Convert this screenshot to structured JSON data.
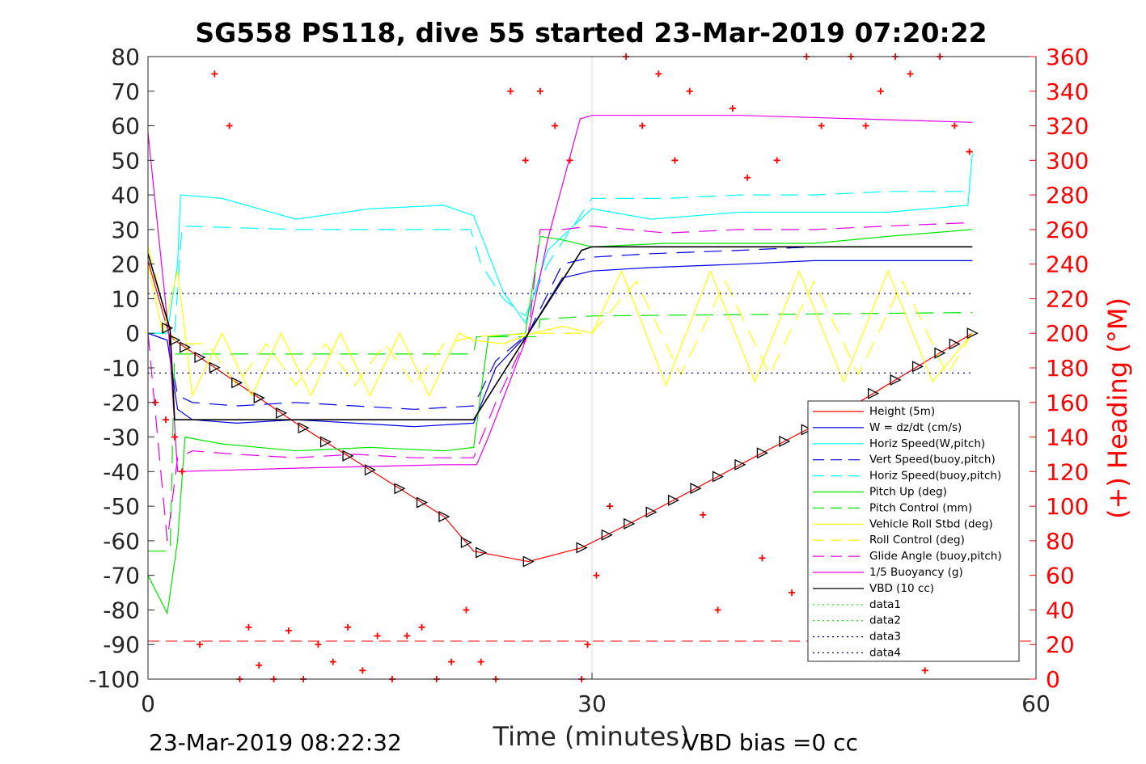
{
  "chart_data": {
    "type": "line",
    "title": "SG558 PS118, dive 55 started 23-Mar-2019 07:20:22",
    "xlabel": "Time (minutes)",
    "ylabel": "",
    "ylabel_right": "(+) Heading (°M)",
    "xlim": [
      0,
      60
    ],
    "ylim": [
      -100,
      80
    ],
    "ylim_right": [
      0,
      360
    ],
    "x_ticks": [
      "0",
      "30",
      "60"
    ],
    "y_ticks": [
      "80",
      "70",
      "60",
      "50",
      "40",
      "30",
      "20",
      "10",
      "0",
      "-10",
      "-20",
      "-30",
      "-40",
      "-50",
      "-60",
      "-70",
      "-80",
      "-90",
      "-100"
    ],
    "y_ticks_right": [
      "360",
      "340",
      "320",
      "300",
      "280",
      "260",
      "240",
      "220",
      "200",
      "180",
      "160",
      "140",
      "120",
      "100",
      "80",
      "60",
      "40",
      "20",
      "0"
    ],
    "grid": "vertical at x=30",
    "legend_position": "bottom-right",
    "footer_left": "23-Mar-2019 08:22:32",
    "footer_right": "VBD bias =0 cc",
    "colors": {
      "red": "#ff0000",
      "blue": "#0000e6",
      "cyan": "#00ffff",
      "green": "#00e600",
      "yellow": "#ffff00",
      "magenta": "#e600e6",
      "black": "#000000",
      "navy": "#000080"
    },
    "series": [
      {
        "name": "Height (5m)",
        "color": "#ff0000",
        "style": "solid",
        "x": [
          0,
          1.4,
          1.8,
          10,
          20,
          22,
          25.7,
          29.3,
          33,
          40,
          48,
          55.7
        ],
        "values": [
          21,
          0,
          -2,
          -26,
          -53,
          -63,
          -66,
          -62,
          -54,
          -38,
          -20,
          0
        ]
      },
      {
        "name": "W = dz/dt (cm/s)",
        "color": "#0000e6",
        "style": "solid",
        "x": [
          0,
          1.3,
          2,
          3,
          6,
          10,
          14,
          18,
          22,
          23.5,
          25.7,
          28,
          30,
          34,
          40,
          45,
          50,
          55.7
        ],
        "values": [
          0,
          -2,
          -22,
          -25,
          -26,
          -25,
          -26,
          -27,
          -26,
          -10,
          0,
          16,
          18,
          19,
          20,
          21,
          21,
          21
        ]
      },
      {
        "name": "Horiz Speed(W,pitch)",
        "color": "#00ffff",
        "style": "solid",
        "x": [
          0,
          1.3,
          2,
          2.2,
          5,
          10,
          15,
          20,
          22,
          24,
          25.5,
          27,
          30,
          34,
          40,
          45,
          50,
          55.4,
          55.7
        ],
        "values": [
          0,
          0,
          20,
          40,
          39,
          33,
          36,
          37,
          34,
          12,
          3,
          24,
          36,
          33,
          35,
          35,
          35,
          37,
          52
        ]
      },
      {
        "name": "Vert Speed(buoy,pitch)",
        "color": "#0000e6",
        "style": "dashed",
        "x": [
          0,
          1.3,
          2,
          3,
          6,
          10,
          14,
          18,
          22,
          23.5,
          25.7,
          28,
          30,
          34,
          40,
          45,
          50,
          55.7
        ],
        "values": [
          0,
          -2,
          -18,
          -20,
          -21,
          -20,
          -21,
          -22,
          -21,
          -8,
          0,
          20,
          22,
          23,
          24,
          25,
          25,
          25
        ]
      },
      {
        "name": "Horiz Speed(buoy,pitch)",
        "color": "#00ffff",
        "style": "dashed",
        "x": [
          0,
          1.8,
          2.3,
          10,
          15,
          21.8,
          22.5,
          24,
          25.5,
          27,
          30,
          35,
          40,
          45,
          50,
          55.7
        ],
        "values": [
          0,
          0,
          31,
          30,
          30,
          30,
          20,
          10,
          5,
          20,
          39,
          39,
          40,
          40,
          41,
          41
        ]
      },
      {
        "name": "Pitch Up (deg)",
        "color": "#00e600",
        "style": "solid",
        "x": [
          0,
          1.3,
          2,
          2.5,
          5,
          10,
          15,
          20,
          22,
          23,
          25.5,
          26.5,
          28,
          30,
          35,
          40,
          45,
          50,
          55.7
        ],
        "values": [
          -70,
          -81,
          -60,
          -30,
          -32,
          -34,
          -33,
          -34,
          -33,
          -1,
          0,
          28,
          27,
          25,
          26,
          26,
          26,
          28,
          30
        ]
      },
      {
        "name": "Pitch Control (mm)",
        "color": "#00e600",
        "style": "dashed",
        "x": [
          0,
          1.5,
          1.8,
          22,
          22.2,
          26.3,
          26.5,
          30,
          55.7
        ],
        "values": [
          -63,
          -63,
          -6,
          -6,
          -1,
          -1,
          4,
          5,
          6
        ]
      },
      {
        "name": "Vehicle Roll Stbd (deg)",
        "color": "#ffff00",
        "style": "solid",
        "x": [
          0,
          1,
          2,
          3,
          5,
          7,
          9,
          11,
          13,
          15,
          17,
          19,
          21,
          22,
          24,
          26,
          28,
          30,
          32,
          35,
          38,
          41,
          44,
          47,
          50,
          53,
          55.7
        ],
        "values": [
          20,
          0,
          18,
          -18,
          0,
          -18,
          0,
          -18,
          0,
          -18,
          0,
          -18,
          0,
          -2,
          -3,
          0,
          2,
          0,
          18,
          -15,
          18,
          -14,
          18,
          -14,
          18,
          -14,
          0
        ]
      },
      {
        "name": "Roll Control (deg)",
        "color": "#ffff00",
        "style": "dashed",
        "x": [
          0,
          1.5,
          2,
          4,
          6,
          8,
          10,
          12,
          14,
          16,
          18,
          20,
          22,
          26,
          30,
          33,
          36,
          39,
          42,
          45,
          48,
          51,
          54,
          55.7
        ],
        "values": [
          25,
          0,
          -3,
          -3,
          -15,
          -3,
          -15,
          -3,
          -15,
          -3,
          -15,
          -3,
          -1,
          0,
          0,
          15,
          -12,
          15,
          -12,
          15,
          -12,
          15,
          -12,
          0
        ]
      },
      {
        "name": "Glide Angle (buoy,pitch)",
        "color": "#e600e6",
        "style": "dashed",
        "x": [
          0,
          1.3,
          2,
          3,
          6,
          10,
          14,
          18,
          22,
          23.5,
          25.7,
          26.5,
          28,
          30,
          35,
          40,
          45,
          50,
          55.7
        ],
        "values": [
          0,
          -60,
          -36,
          -34,
          -35,
          -36,
          -35,
          -36,
          -36,
          -20,
          0,
          30,
          30,
          31,
          29,
          30,
          30,
          31,
          32
        ]
      },
      {
        "name": "1/5 Buoyancy (g)",
        "color": "#e600e6",
        "style": "solid",
        "x": [
          0,
          1.4,
          2,
          10,
          20,
          22.2,
          23,
          25.7,
          27,
          29.2,
          30,
          40,
          48,
          55.7
        ],
        "values": [
          58,
          0,
          -40,
          -39,
          -38,
          -38,
          -30,
          0,
          27,
          62,
          63,
          63,
          62,
          61
        ]
      },
      {
        "name": "VBD (10 cc)",
        "color": "#000000",
        "style": "solid",
        "x": [
          0,
          1.5,
          1.8,
          22,
          25.7,
          29.3,
          30,
          55.7
        ],
        "values": [
          23,
          1,
          -25,
          -25,
          0,
          24,
          25,
          25
        ]
      },
      {
        "name": "data1",
        "color": "#00e600",
        "style": "dotted",
        "x": [],
        "values": []
      },
      {
        "name": "data2",
        "color": "#00e600",
        "style": "dotted",
        "x": [],
        "values": []
      },
      {
        "name": "data3",
        "color": "#000080",
        "style": "dotted",
        "x": [
          0,
          55.7
        ],
        "values": [
          11.5,
          11.5
        ]
      },
      {
        "name": "data4",
        "color": "#000080",
        "style": "dotted",
        "x": [
          0,
          55.7
        ],
        "values": [
          -11.5,
          -11.5
        ]
      }
    ],
    "reference_line": {
      "color": "#ff0000",
      "style": "dashed",
      "y_right": 22
    },
    "heading_series": {
      "name": "(+) Heading (°M)",
      "color": "#ff0000",
      "marker": "+",
      "x": [
        0.5,
        1.2,
        1.8,
        2.3,
        3.5,
        4.5,
        5.5,
        6.2,
        6.8,
        7.5,
        8.5,
        9.5,
        10.5,
        11.5,
        12.5,
        13.5,
        14.5,
        15.5,
        16.5,
        17.5,
        18.5,
        19.5,
        20.5,
        21.5,
        22.5,
        23.5,
        24.5,
        25.5,
        26.5,
        27.5,
        28.5,
        29.3,
        29.7,
        30.3,
        31.2,
        32.3,
        33.4,
        34.5,
        35.6,
        36.6,
        37.5,
        38.5,
        39.5,
        40.5,
        41.5,
        42.5,
        43.5,
        44.5,
        45.5,
        46.5,
        47.5,
        48.5,
        49.5,
        50.5,
        51.5,
        52.5,
        53.5,
        54.5,
        55.5
      ],
      "values": [
        160,
        150,
        140,
        120,
        20,
        350,
        320,
        0,
        30,
        8,
        0,
        28,
        0,
        20,
        10,
        30,
        5,
        25,
        0,
        25,
        30,
        0,
        10,
        40,
        10,
        0,
        340,
        300,
        340,
        320,
        300,
        0,
        20,
        60,
        100,
        360,
        320,
        350,
        300,
        340,
        95,
        40,
        330,
        290,
        70,
        300,
        50,
        360,
        320,
        20,
        360,
        320,
        340,
        360,
        350,
        5,
        360,
        320,
        305
      ]
    },
    "vbd_markers_x": [
      1.3,
      1.8,
      2.5,
      3.5,
      4.5,
      6,
      7.5,
      9,
      10.5,
      12,
      13.5,
      15,
      17,
      18.5,
      20,
      21.5,
      22.5,
      25.7,
      29.3,
      31,
      32.5,
      34,
      35.5,
      37,
      38.5,
      40,
      41.5,
      43,
      44.5,
      46,
      47.5,
      49,
      50.5,
      52,
      53.5,
      54.5,
      55.7
    ]
  }
}
